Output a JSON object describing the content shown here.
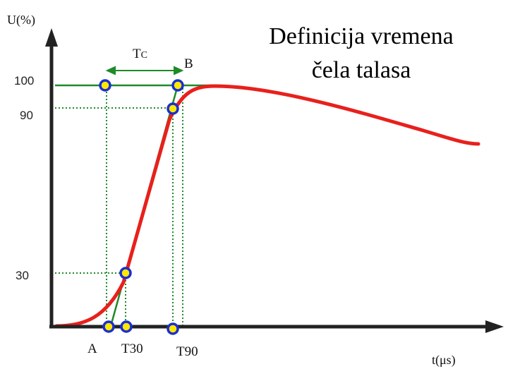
{
  "title": {
    "line1": "Definicija vremena",
    "line2": "čela talasa"
  },
  "axes": {
    "y_title": "U(%)",
    "x_title": "t(μs)",
    "y_ticks": [
      "100",
      "90",
      "30"
    ]
  },
  "labels": {
    "tc": "T",
    "tc_sub": "C",
    "b": "B",
    "a": "A",
    "t30": "T30",
    "t90": "T90"
  },
  "colors": {
    "waveform": "#e8201c",
    "construction_line": "#1f8a2a",
    "marker_fill": "#ffe800",
    "marker_stroke": "#1a2fd0",
    "axis": "#222222"
  }
}
